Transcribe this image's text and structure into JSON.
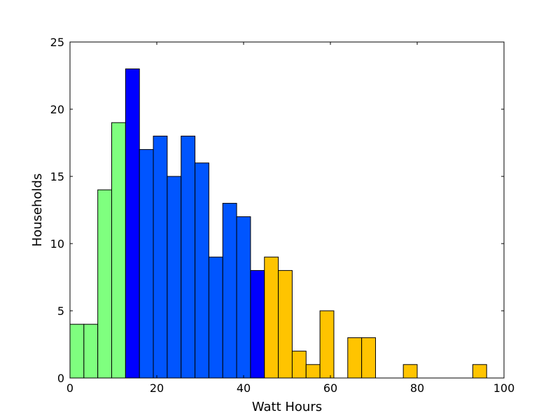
{
  "chart_data": {
    "type": "bar",
    "title": "",
    "xlabel": "Watt Hours",
    "ylabel": "Households",
    "xlim": [
      0,
      100
    ],
    "ylim": [
      0,
      25
    ],
    "xticks": [
      0,
      20,
      40,
      60,
      80,
      100
    ],
    "yticks": [
      0,
      5,
      10,
      15,
      20,
      25
    ],
    "grid": false,
    "bin_width": 3.2,
    "bins": [
      {
        "x0": 0.0,
        "value": 4,
        "color": "#7fff7f"
      },
      {
        "x0": 3.2,
        "value": 4,
        "color": "#7fff7f"
      },
      {
        "x0": 6.4,
        "value": 14,
        "color": "#7fff7f"
      },
      {
        "x0": 9.6,
        "value": 19,
        "color": "#7fff7f"
      },
      {
        "x0": 12.8,
        "value": 23,
        "color": "#0000ff"
      },
      {
        "x0": 16.0,
        "value": 17,
        "color": "#0055ff"
      },
      {
        "x0": 19.2,
        "value": 18,
        "color": "#0055ff"
      },
      {
        "x0": 22.4,
        "value": 15,
        "color": "#0055ff"
      },
      {
        "x0": 25.6,
        "value": 18,
        "color": "#0055ff"
      },
      {
        "x0": 28.8,
        "value": 16,
        "color": "#0055ff"
      },
      {
        "x0": 32.0,
        "value": 9,
        "color": "#0055ff"
      },
      {
        "x0": 35.2,
        "value": 13,
        "color": "#0055ff"
      },
      {
        "x0": 38.4,
        "value": 12,
        "color": "#0055ff"
      },
      {
        "x0": 41.6,
        "value": 8,
        "color": "#0000ff"
      },
      {
        "x0": 44.8,
        "value": 9,
        "color": "#ffc400"
      },
      {
        "x0": 48.0,
        "value": 8,
        "color": "#ffc400"
      },
      {
        "x0": 51.2,
        "value": 2,
        "color": "#ffc400"
      },
      {
        "x0": 54.4,
        "value": 1,
        "color": "#ffc400"
      },
      {
        "x0": 57.6,
        "value": 5,
        "color": "#ffc400"
      },
      {
        "x0": 60.8,
        "value": 0,
        "color": "#ffc400"
      },
      {
        "x0": 64.0,
        "value": 3,
        "color": "#ffc400"
      },
      {
        "x0": 67.2,
        "value": 3,
        "color": "#ffc400"
      },
      {
        "x0": 70.4,
        "value": 0,
        "color": "#ffc400"
      },
      {
        "x0": 73.6,
        "value": 0,
        "color": "#ffc400"
      },
      {
        "x0": 76.8,
        "value": 1,
        "color": "#ffc400"
      },
      {
        "x0": 80.0,
        "value": 0,
        "color": "#ffc400"
      },
      {
        "x0": 83.2,
        "value": 0,
        "color": "#ffc400"
      },
      {
        "x0": 86.4,
        "value": 0,
        "color": "#ffc400"
      },
      {
        "x0": 89.6,
        "value": 0,
        "color": "#ffc400"
      },
      {
        "x0": 92.8,
        "value": 1,
        "color": "#ffc400"
      }
    ]
  }
}
